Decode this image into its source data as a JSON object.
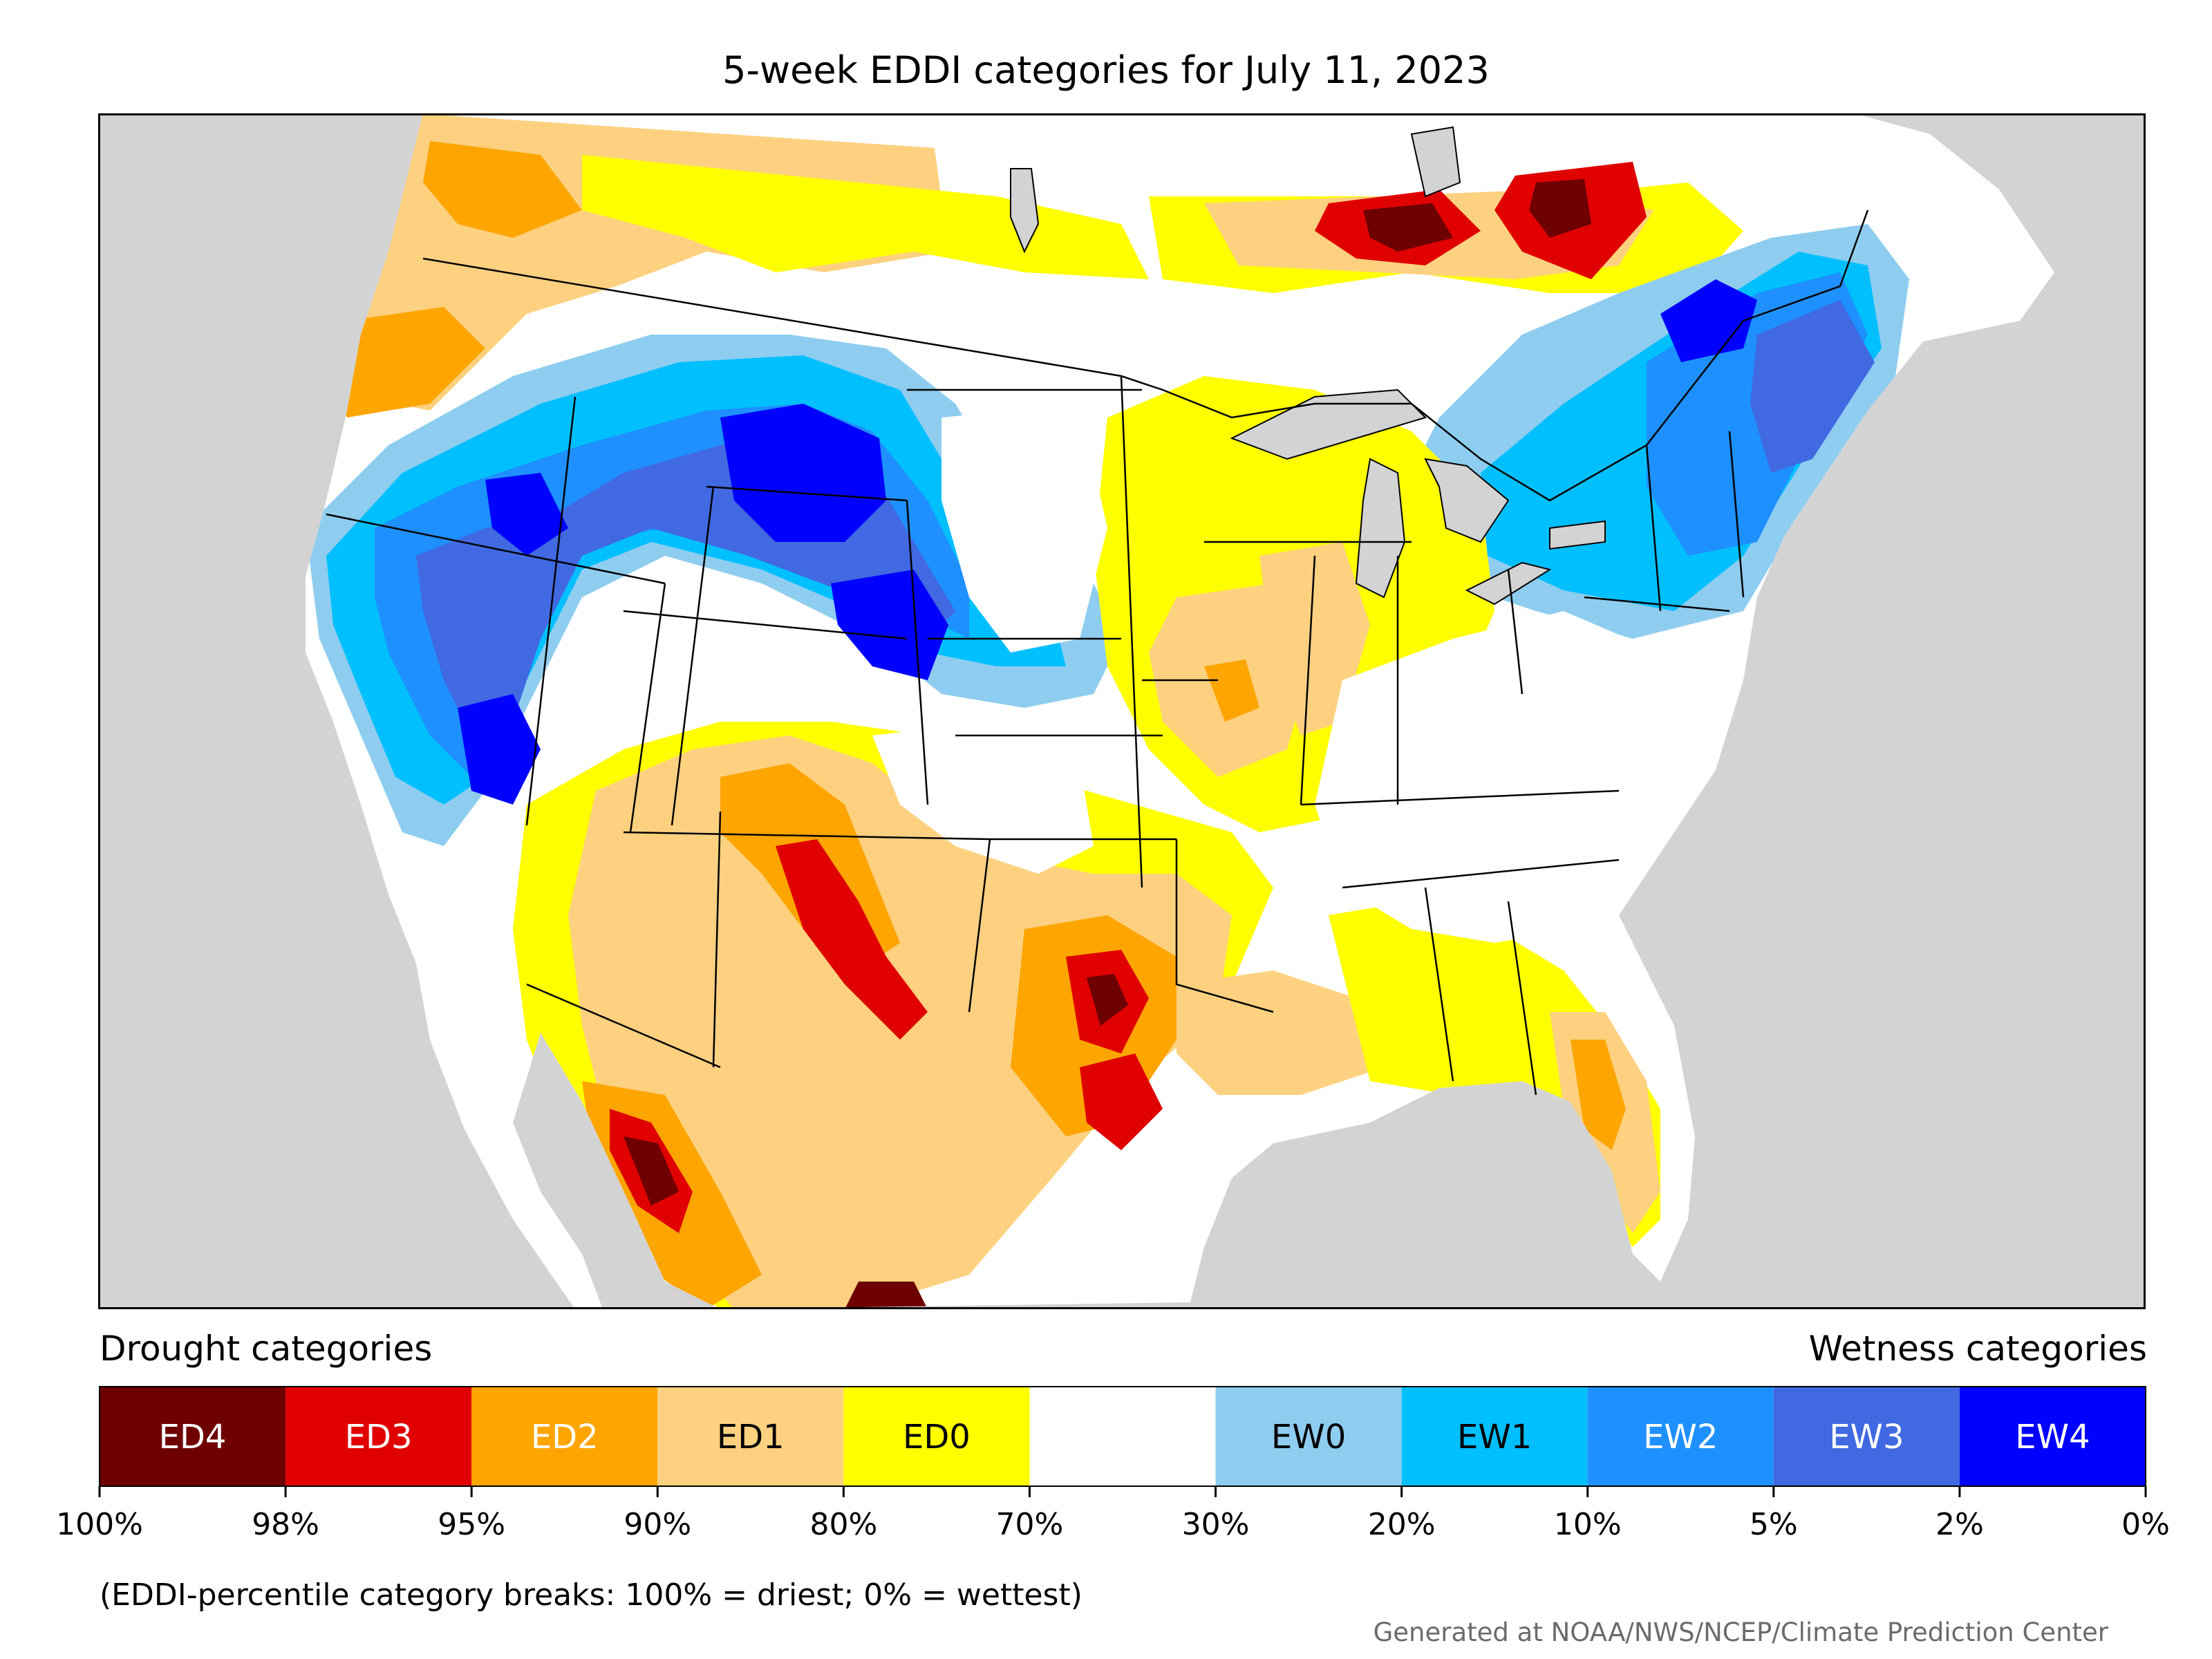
{
  "title": "5-week EDDI categories for July 11, 2023",
  "legend": {
    "drought_heading": "Drought categories",
    "wetness_heading": "Wetness categories",
    "categories": [
      {
        "label": "ED4",
        "color": "#6e0000",
        "text_color": "#ffffff"
      },
      {
        "label": "ED3",
        "color": "#e00000",
        "text_color": "#ffffff"
      },
      {
        "label": "ED2",
        "color": "#ffa500",
        "text_color": "#ffffff"
      },
      {
        "label": "ED1",
        "color": "#fdd17f",
        "text_color": "#000000"
      },
      {
        "label": "ED0",
        "color": "#ffff00",
        "text_color": "#000000"
      },
      {
        "label": "",
        "color": "#ffffff",
        "text_color": "#000000"
      },
      {
        "label": "EW0",
        "color": "#8ecdf0",
        "text_color": "#000000"
      },
      {
        "label": "EW1",
        "color": "#00bfff",
        "text_color": "#000000"
      },
      {
        "label": "EW2",
        "color": "#1e90ff",
        "text_color": "#ffffff"
      },
      {
        "label": "EW3",
        "color": "#4169e1",
        "text_color": "#ffffff"
      },
      {
        "label": "EW4",
        "color": "#0000ff",
        "text_color": "#ffffff"
      }
    ],
    "breaks": [
      "100%",
      "98%",
      "95%",
      "90%",
      "80%",
      "70%",
      "30%",
      "20%",
      "10%",
      "5%",
      "2%",
      "0%"
    ]
  },
  "caption": "(EDDI-percentile category breaks: 100% = driest; 0% = wettest)",
  "credit": "Generated at NOAA/NWS/NCEP/Climate Prediction Center",
  "colors": {
    "ocean": "#d3d3d3",
    "lakes": "#d3d3d3",
    "land_neutral": "#ffffff",
    "borders": "#000000"
  }
}
